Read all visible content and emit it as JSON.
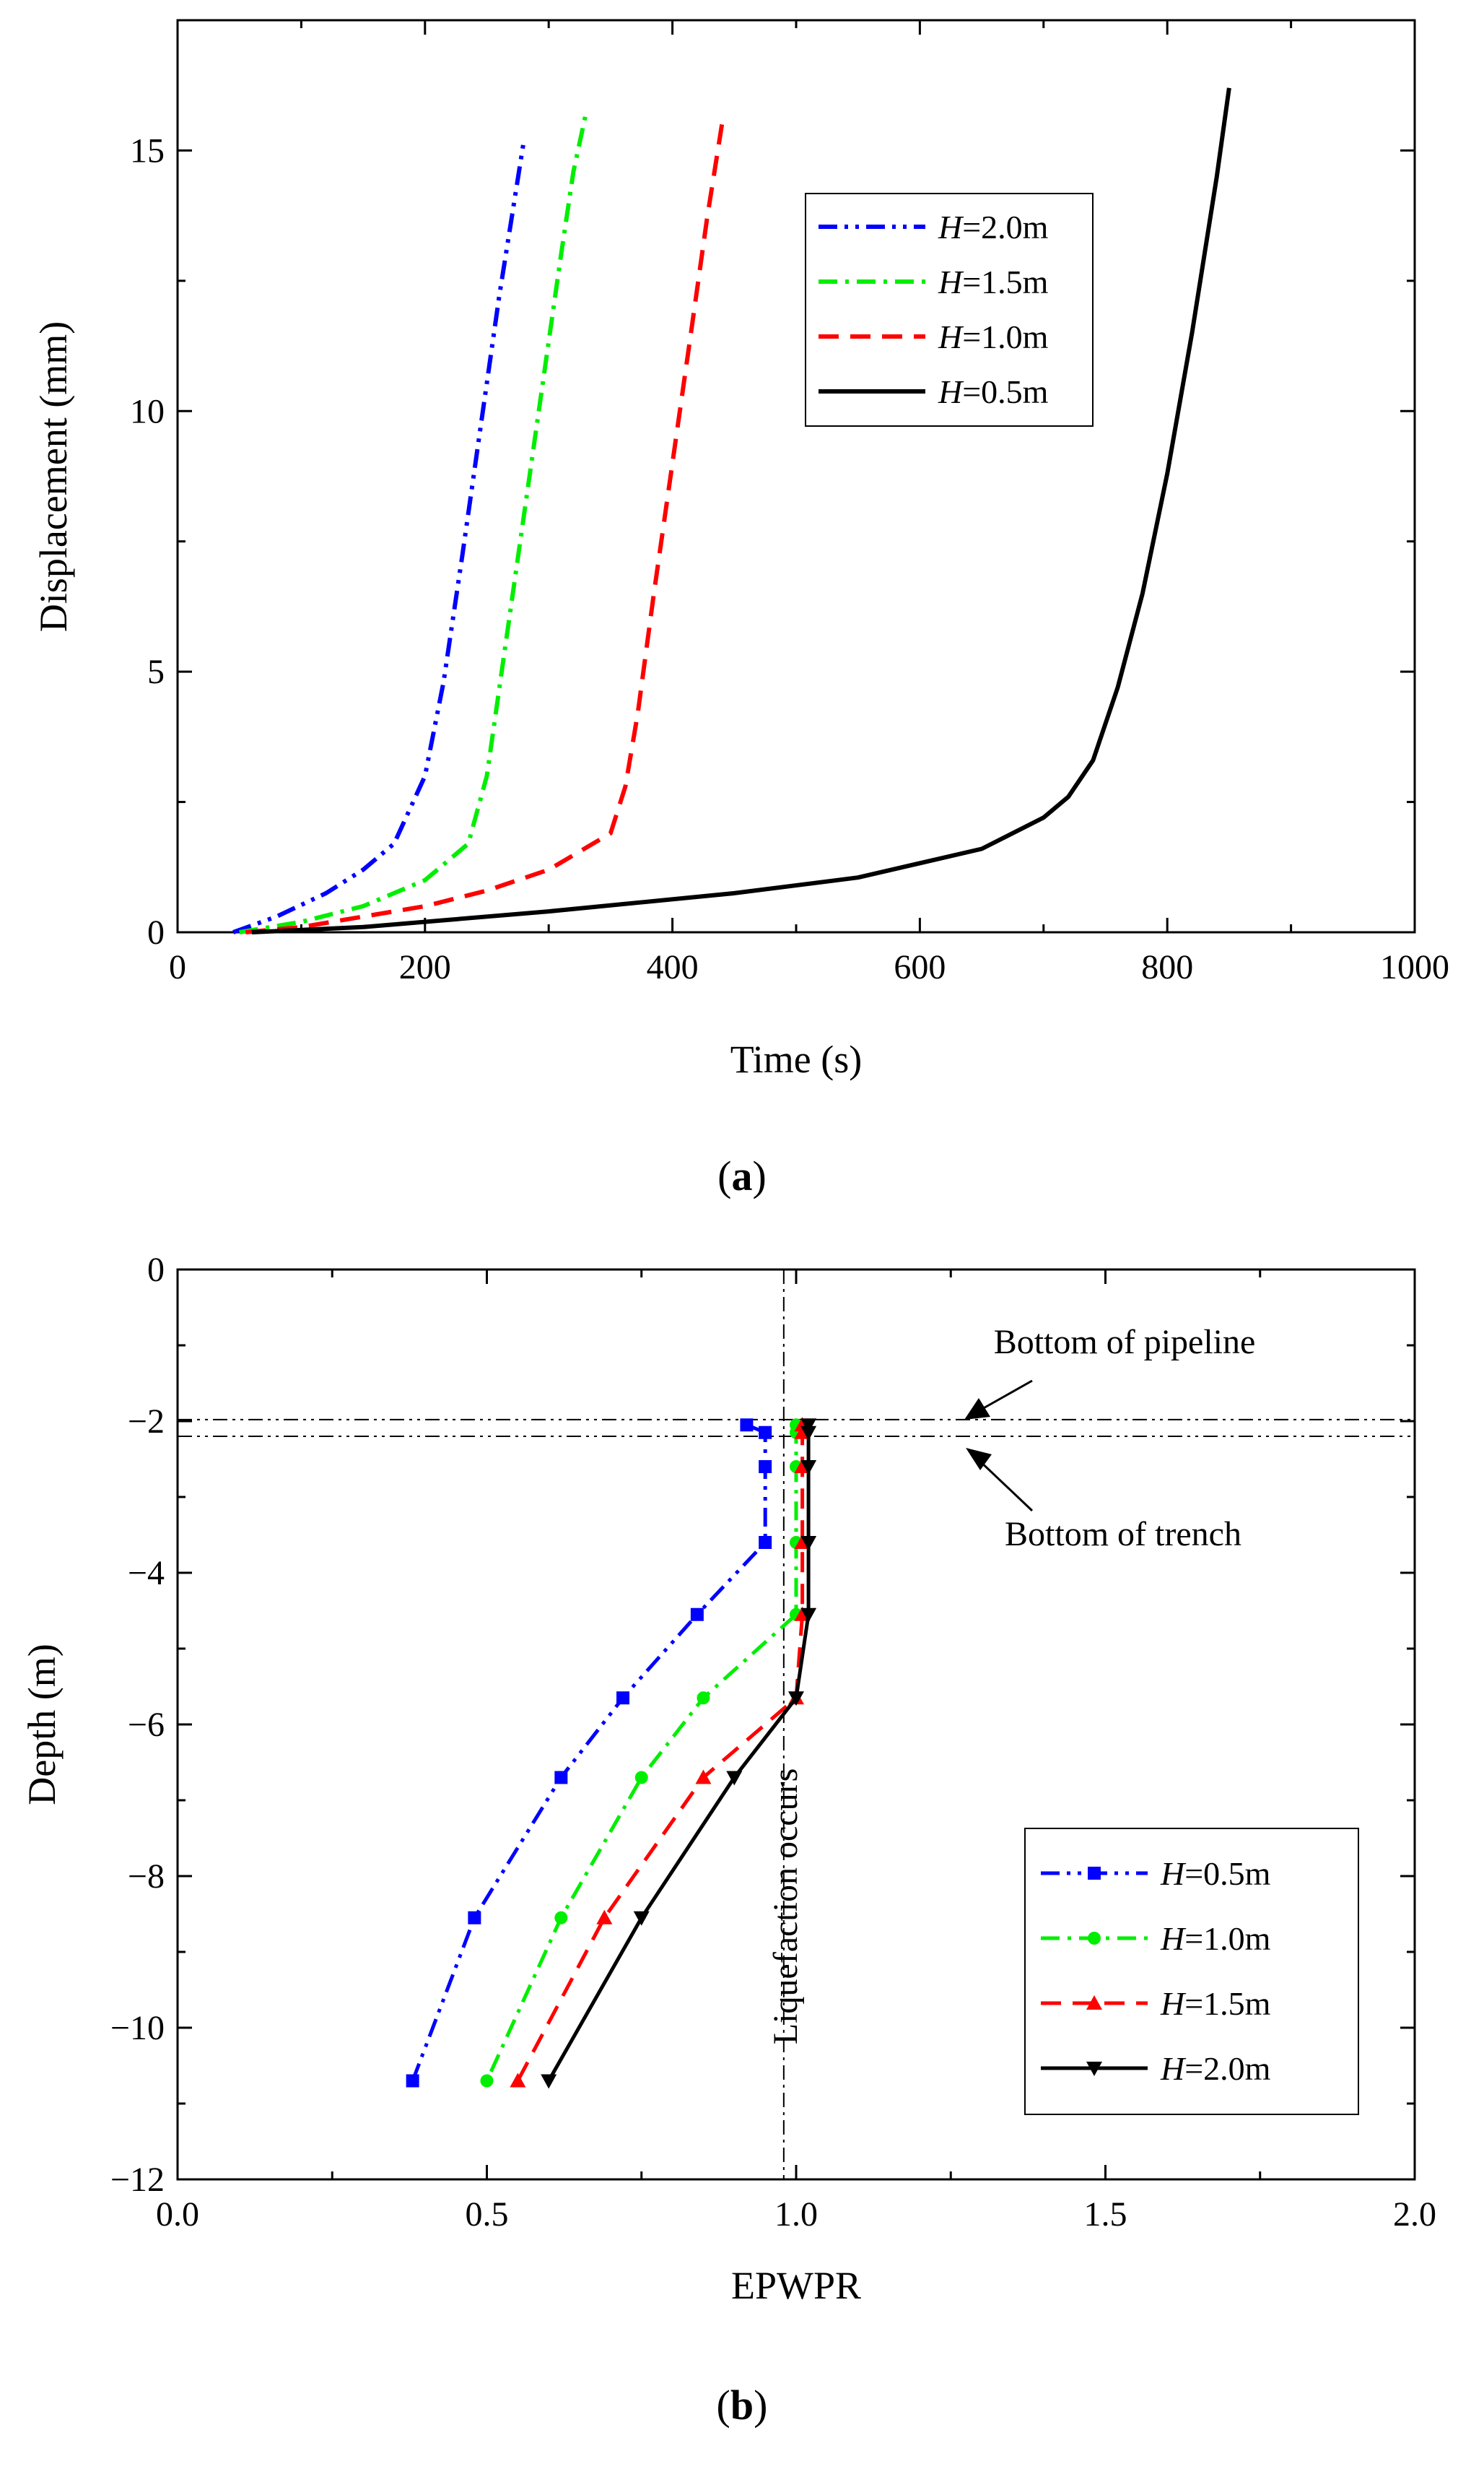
{
  "chart_data": [
    {
      "type": "line",
      "caption_letter": "a",
      "xlabel": "Time (s)",
      "ylabel": "Displacement (mm)",
      "xlim": [
        0,
        1000
      ],
      "ylim": [
        0,
        17.5
      ],
      "xticks": [
        0,
        200,
        400,
        600,
        800,
        1000
      ],
      "yticks": [
        0,
        5,
        10,
        15
      ],
      "legend_position": "top-right",
      "series": [
        {
          "name": "H=2.0m",
          "italic": "H",
          "rest": "=2.0m",
          "color": "#0000ff",
          "dash": "dashdotdot",
          "x": [
            45,
            80,
            120,
            150,
            175,
            200,
            215,
            230,
            245,
            260,
            270,
            280
          ],
          "y": [
            0,
            0.3,
            0.75,
            1.2,
            1.7,
            3.0,
            4.8,
            7.2,
            9.7,
            12.2,
            13.7,
            15.2
          ]
        },
        {
          "name": "H=1.5m",
          "italic": "H",
          "rest": "=1.5m",
          "color": "#00ee00",
          "dash": "dashdot",
          "x": [
            50,
            100,
            150,
            200,
            235,
            250,
            265,
            280,
            295,
            310,
            320,
            330
          ],
          "y": [
            0,
            0.2,
            0.5,
            1.0,
            1.7,
            3.0,
            5.5,
            8.0,
            10.5,
            13.0,
            14.6,
            15.7
          ]
        },
        {
          "name": "H=1.0m",
          "italic": "H",
          "rest": "=1.0m",
          "color": "#ff0000",
          "dash": "dash",
          "x": [
            55,
            100,
            150,
            200,
            250,
            300,
            350,
            362,
            372,
            385,
            400,
            415,
            428,
            440
          ],
          "y": [
            0,
            0.1,
            0.3,
            0.5,
            0.8,
            1.2,
            1.9,
            2.8,
            4.2,
            6.5,
            9.0,
            11.5,
            13.7,
            15.5
          ]
        },
        {
          "name": "H=0.5m",
          "italic": "H",
          "rest": "=0.5m",
          "color": "#000000",
          "dash": "solid",
          "x": [
            60,
            150,
            300,
            450,
            550,
            650,
            700,
            720,
            740,
            760,
            780,
            800,
            820,
            840,
            850
          ],
          "y": [
            0,
            0.1,
            0.4,
            0.75,
            1.05,
            1.6,
            2.2,
            2.6,
            3.3,
            4.7,
            6.5,
            8.8,
            11.5,
            14.5,
            16.2
          ]
        }
      ]
    },
    {
      "type": "line",
      "caption_letter": "b",
      "xlabel": "EPWPR",
      "ylabel": "Depth (m)",
      "xlim": [
        0.0,
        2.0
      ],
      "ylim": [
        -12,
        0
      ],
      "xticks": [
        0.0,
        0.5,
        1.0,
        1.5,
        2.0
      ],
      "xtick_labels": [
        "0.0",
        "0.5",
        "1.0",
        "1.5",
        "2.0"
      ],
      "yticks": [
        0,
        -2,
        -4,
        -6,
        -8,
        -10,
        -12
      ],
      "ytick_labels": [
        "0",
        "−2",
        "−4",
        "−6",
        "−8",
        "−10",
        "−12"
      ],
      "legend_position": "bottom-right",
      "vline": {
        "x": 0.98,
        "label": "Liquefaction occurs"
      },
      "hlines": [
        {
          "y": -1.98,
          "label": "Bottom of pipeline"
        },
        {
          "y": -2.2,
          "label": "Bottom of trench"
        }
      ],
      "series": [
        {
          "name": "H=0.5m",
          "italic": "H",
          "rest": "=0.5m",
          "color": "#0000ff",
          "dash": "dashdotdot",
          "marker": "square",
          "x": [
            0.92,
            0.95,
            0.95,
            0.95,
            0.84,
            0.72,
            0.62,
            0.48,
            0.38
          ],
          "y": [
            -2.05,
            -2.15,
            -2.6,
            -3.6,
            -4.55,
            -5.65,
            -6.7,
            -8.55,
            -10.7
          ]
        },
        {
          "name": "H=1.0m",
          "italic": "H",
          "rest": "=1.0m",
          "color": "#00ee00",
          "dash": "dashdot",
          "marker": "circle",
          "x": [
            1.0,
            1.0,
            1.0,
            1.0,
            1.0,
            0.85,
            0.75,
            0.62,
            0.5
          ],
          "y": [
            -2.05,
            -2.15,
            -2.6,
            -3.6,
            -4.55,
            -5.65,
            -6.7,
            -8.55,
            -10.7
          ]
        },
        {
          "name": "H=1.5m",
          "italic": "H",
          "rest": "=1.5m",
          "color": "#ff0000",
          "dash": "dash",
          "marker": "triangle-up",
          "x": [
            1.01,
            1.01,
            1.01,
            1.01,
            1.01,
            1.0,
            0.85,
            0.69,
            0.55
          ],
          "y": [
            -2.05,
            -2.15,
            -2.6,
            -3.6,
            -4.55,
            -5.65,
            -6.7,
            -8.55,
            -10.7
          ]
        },
        {
          "name": "H=2.0m",
          "italic": "H",
          "rest": "=2.0m",
          "color": "#000000",
          "dash": "solid",
          "marker": "triangle-down",
          "x": [
            1.02,
            1.02,
            1.02,
            1.02,
            1.02,
            1.0,
            0.9,
            0.75,
            0.6
          ],
          "y": [
            -2.05,
            -2.15,
            -2.6,
            -3.6,
            -4.55,
            -5.65,
            -6.7,
            -8.55,
            -10.7
          ]
        }
      ]
    }
  ]
}
